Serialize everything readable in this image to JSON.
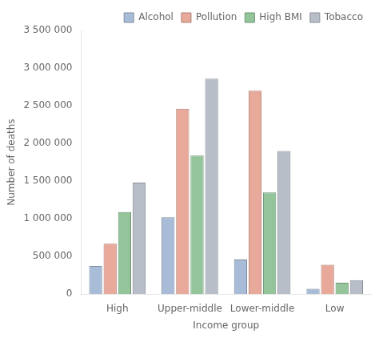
{
  "chart_data": {
    "type": "bar",
    "xlabel": "Income group",
    "ylabel": "Number of deaths",
    "categories": [
      "High",
      "Upper-middle",
      "Lower-middle",
      "Low"
    ],
    "series": [
      {
        "name": "Alcohol",
        "color": "#a8bcd8",
        "values": [
          375000,
          1020000,
          460000,
          70000
        ]
      },
      {
        "name": "Pollution",
        "color": "#e8a99a",
        "values": [
          670000,
          2460000,
          2700000,
          390000
        ]
      },
      {
        "name": "High BMI",
        "color": "#93c49a",
        "values": [
          1090000,
          1840000,
          1350000,
          150000
        ]
      },
      {
        "name": "Tobacco",
        "color": "#b8bec8",
        "values": [
          1480000,
          2860000,
          1900000,
          185000
        ]
      }
    ],
    "ylim": [
      0,
      3500000
    ],
    "yticks": [
      0,
      {
        "value": 500000,
        "label": "500 000"
      },
      {
        "value": 1000000,
        "label": "1 000 000"
      },
      {
        "value": 1500000,
        "label": "1 500 000"
      },
      {
        "value": 2000000,
        "label": "2 000 000"
      },
      {
        "value": 2500000,
        "label": "2 500 000"
      },
      {
        "value": 3000000,
        "label": "3 000 000"
      },
      {
        "value": 3500000,
        "label": "3 500 000"
      }
    ],
    "grid": false,
    "legend": "upper right"
  }
}
